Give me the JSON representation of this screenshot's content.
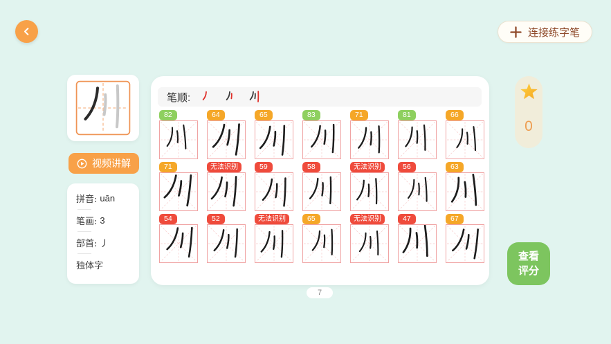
{
  "colors": {
    "background": "#e1f4ef",
    "accent_orange": "#f8a148",
    "brown_text": "#8f4a2a",
    "badge_green": "#8ed05f",
    "badge_orange": "#f5a728",
    "badge_red": "#ef4b3c",
    "grid_pink": "#f0a3a3",
    "button_green": "#7dc55f",
    "star_yellow": "#fcbe2d",
    "stroke_red": "#e0302a"
  },
  "header": {
    "connect_pen_label": "连接练字笔"
  },
  "left_panel": {
    "character": "川",
    "video_button_label": "视频讲解",
    "info": [
      {
        "label": "拼音:",
        "value": "uān"
      },
      {
        "label": "笔画:",
        "value": "3"
      },
      {
        "label": "部首:",
        "value": "丿"
      },
      {
        "label": "独体字",
        "value": ""
      }
    ]
  },
  "main_panel": {
    "stroke_order_label": "笔顺:",
    "stroke_steps": [
      1,
      2,
      3
    ],
    "columns": 7,
    "scores": [
      "82",
      "64",
      "65",
      "83",
      "71",
      "81",
      "66",
      "71",
      "无法识别",
      "59",
      "58",
      "无法识别",
      "56",
      "63",
      "54",
      "52",
      "无法识别",
      "65",
      "无法识别",
      "47",
      "67"
    ]
  },
  "right_panel": {
    "star_count": "0",
    "view_score_lines": [
      "查看",
      "评分"
    ]
  },
  "pagination": {
    "current_page": "7"
  }
}
